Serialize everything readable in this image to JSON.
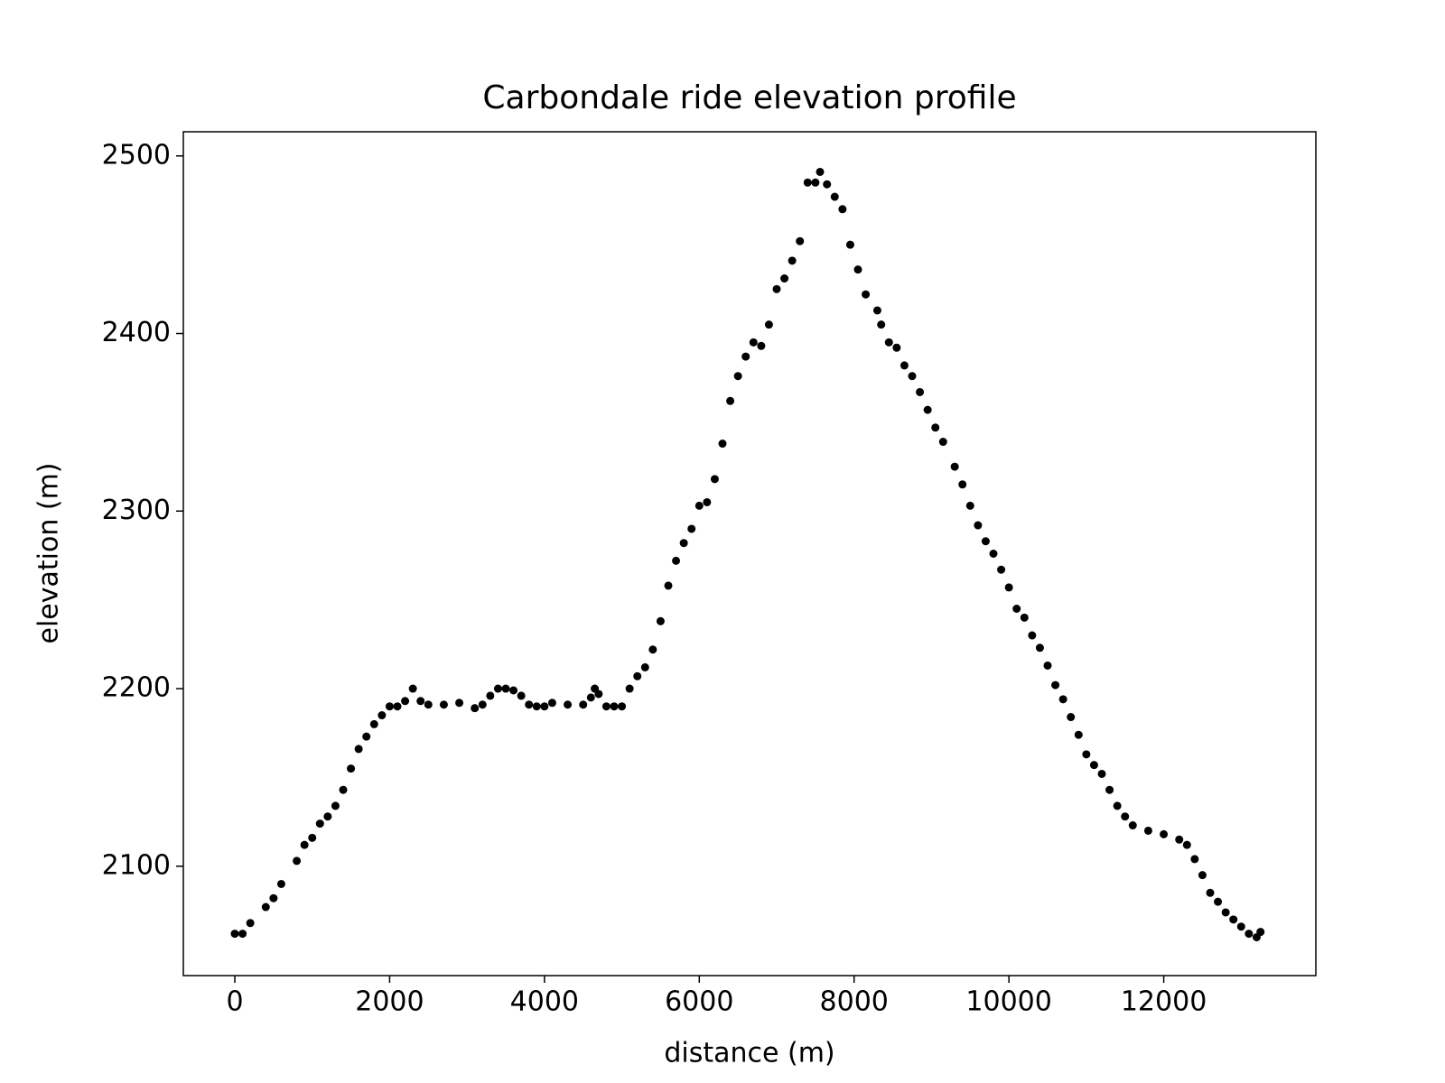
{
  "chart_data": {
    "type": "scatter",
    "title": "Carbondale ride elevation profile",
    "x_label": "distance (m)",
    "y_label": "elevation (m)",
    "color": "#000000",
    "x": [
      0,
      100,
      200,
      400,
      500,
      600,
      800,
      900,
      1000,
      1100,
      1200,
      1300,
      1400,
      1500,
      1600,
      1700,
      1800,
      1900,
      2000,
      2100,
      2200,
      2300,
      2400,
      2500,
      2700,
      2900,
      3100,
      3200,
      3300,
      3400,
      3500,
      3600,
      3700,
      3800,
      3900,
      4000,
      4100,
      4300,
      4500,
      4600,
      4650,
      4700,
      4800,
      4900,
      5000,
      5100,
      5200,
      5300,
      5400,
      5500,
      5600,
      5700,
      5800,
      5900,
      6000,
      6100,
      6200,
      6300,
      6400,
      6500,
      6600,
      6700,
      6800,
      6900,
      7000,
      7100,
      7200,
      7300,
      7400,
      7500,
      7560,
      7650,
      7750,
      7850,
      7950,
      8050,
      8150,
      8300,
      8350,
      8450,
      8550,
      8650,
      8750,
      8850,
      8950,
      9050,
      9150,
      9300,
      9400,
      9500,
      9600,
      9700,
      9800,
      9900,
      10000,
      10100,
      10200,
      10300,
      10400,
      10500,
      10600,
      10700,
      10800,
      10900,
      11000,
      11100,
      11200,
      11300,
      11400,
      11500,
      11600,
      11800,
      12000,
      12200,
      12300,
      12400,
      12500,
      12600,
      12700,
      12800,
      12900,
      13000,
      13100,
      13200,
      13250
    ],
    "values": [
      2062,
      2062,
      2068,
      2077,
      2082,
      2090,
      2103,
      2112,
      2116,
      2124,
      2128,
      2134,
      2143,
      2155,
      2166,
      2173,
      2180,
      2185,
      2190,
      2190,
      2193,
      2200,
      2193,
      2191,
      2191,
      2192,
      2189,
      2191,
      2196,
      2200,
      2200,
      2199,
      2196,
      2191,
      2190,
      2190,
      2192,
      2191,
      2191,
      2195,
      2200,
      2197,
      2190,
      2190,
      2190,
      2200,
      2207,
      2212,
      2222,
      2238,
      2258,
      2272,
      2282,
      2290,
      2303,
      2305,
      2318,
      2338,
      2362,
      2376,
      2387,
      2395,
      2393,
      2405,
      2425,
      2431,
      2441,
      2452,
      2485,
      2485,
      2491,
      2484,
      2477,
      2470,
      2450,
      2436,
      2422,
      2413,
      2405,
      2395,
      2392,
      2382,
      2376,
      2367,
      2357,
      2347,
      2339,
      2325,
      2315,
      2303,
      2292,
      2283,
      2276,
      2267,
      2257,
      2245,
      2240,
      2230,
      2223,
      2213,
      2202,
      2194,
      2184,
      2174,
      2163,
      2157,
      2152,
      2143,
      2134,
      2128,
      2123,
      2120,
      2118,
      2115,
      2112,
      2104,
      2095,
      2085,
      2080,
      2074,
      2070,
      2066,
      2062,
      2060,
      2063
    ],
    "xlim": [
      -665,
      13965
    ],
    "ylim": [
      2038.4,
      2513.6
    ],
    "xticks": [
      0,
      2000,
      4000,
      6000,
      8000,
      10000,
      12000
    ],
    "yticks": [
      2100,
      2200,
      2300,
      2400,
      2500
    ]
  }
}
